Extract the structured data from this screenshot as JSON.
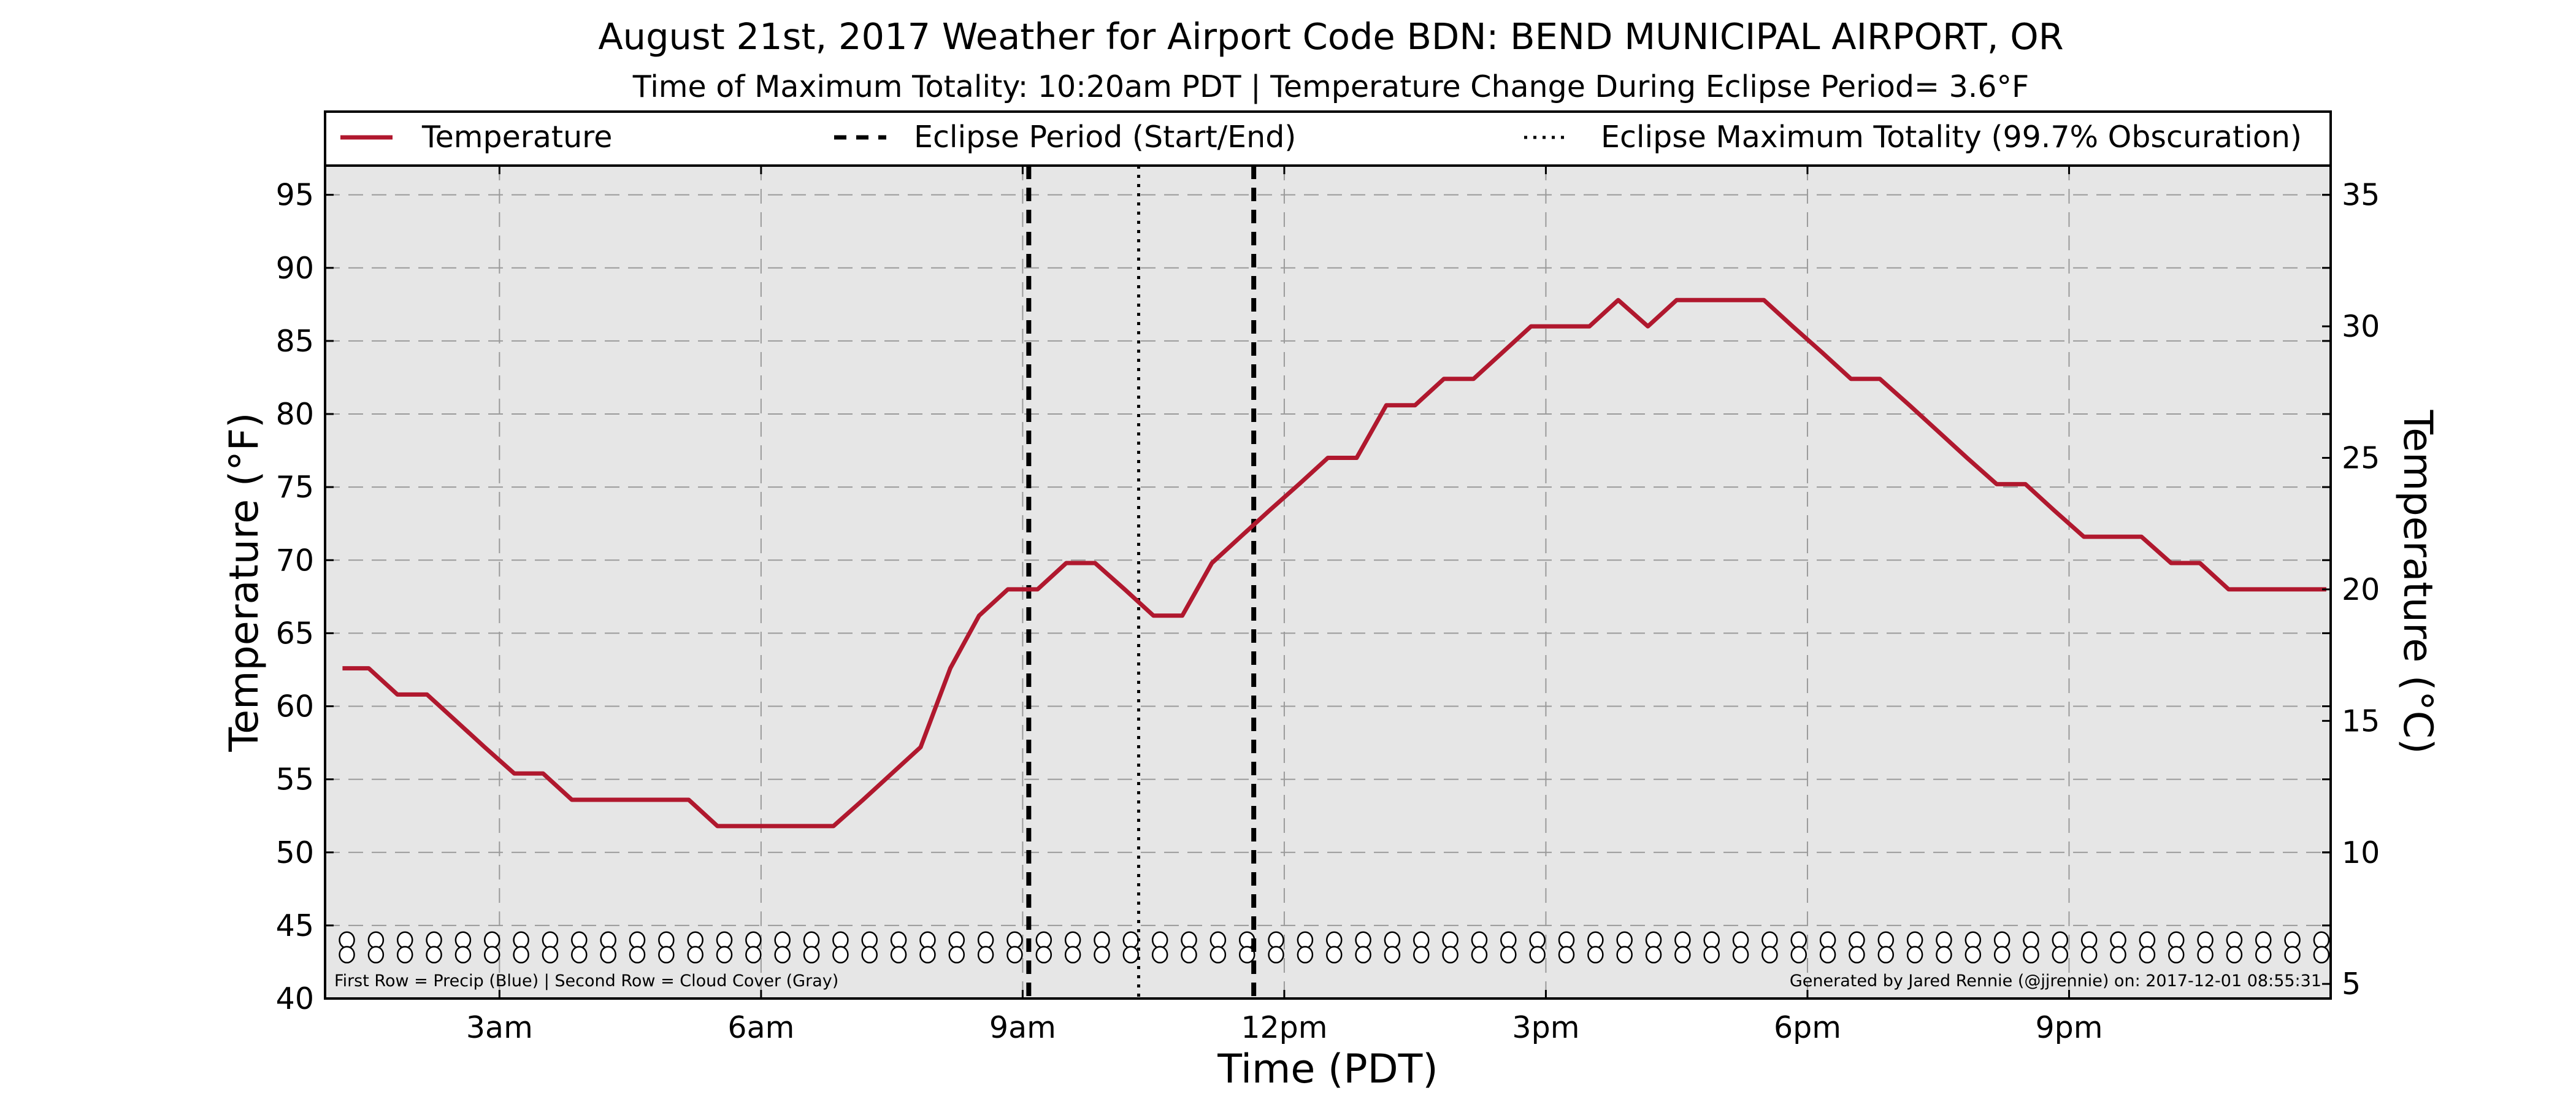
{
  "colors": {
    "temperature": "#b0182e",
    "background": "#e6e6e6",
    "grid": "#9a9a9a",
    "frame": "#000000"
  },
  "chart_data": {
    "type": "line",
    "title": "August 21st, 2017 Weather for Airport Code BDN: BEND MUNICIPAL AIRPORT, OR",
    "subtitle": "Time of Maximum Totality: 10:20am PDT | Temperature Change During Eclipse Period= 3.6°F",
    "xlabel": "Time (PDT)",
    "ylabel": "Temperature (°F)",
    "ylabel_right": "Temperature (°C)",
    "x_unit": "hours after midnight (PDT)",
    "xlim": [
      1.0,
      24.0
    ],
    "ylim": [
      40,
      97
    ],
    "ylim_right_celsius": [
      4.44,
      36.11
    ],
    "x_ticks": [
      {
        "value": 3,
        "label": "3am"
      },
      {
        "value": 6,
        "label": "6am"
      },
      {
        "value": 9,
        "label": "9am"
      },
      {
        "value": 12,
        "label": "12pm"
      },
      {
        "value": 15,
        "label": "3pm"
      },
      {
        "value": 18,
        "label": "6pm"
      },
      {
        "value": 21,
        "label": "9pm"
      }
    ],
    "y_ticks": [
      "40",
      "45",
      "50",
      "55",
      "60",
      "65",
      "70",
      "75",
      "80",
      "85",
      "90",
      "95"
    ],
    "y_ticks_right": [
      "5",
      "10",
      "15",
      "20",
      "25",
      "30",
      "35"
    ],
    "grid": true,
    "legend": {
      "placement": "top",
      "entries": [
        {
          "label": "Temperature",
          "style": "solid"
        },
        {
          "label": "Eclipse Period (Start/End)",
          "style": "dashed"
        },
        {
          "label": "Eclipse Maximum Totality (99.7% Obscuration)",
          "style": "dotted"
        }
      ]
    },
    "series": [
      {
        "name": "Temperature",
        "x": [
          1.2,
          1.5,
          1.83,
          2.17,
          2.5,
          2.83,
          3.17,
          3.5,
          3.83,
          4.17,
          4.5,
          4.83,
          5.17,
          5.5,
          5.83,
          6.17,
          6.5,
          6.83,
          7.17,
          7.5,
          7.83,
          8.17,
          8.5,
          8.83,
          9.17,
          9.5,
          9.83,
          10.17,
          10.5,
          10.83,
          11.17,
          11.5,
          11.83,
          12.17,
          12.5,
          12.83,
          13.17,
          13.5,
          13.83,
          14.17,
          14.5,
          14.83,
          15.17,
          15.5,
          15.83,
          16.17,
          16.5,
          16.83,
          17.17,
          17.5,
          17.83,
          18.17,
          18.5,
          18.83,
          19.17,
          19.5,
          19.83,
          20.17,
          20.5,
          20.83,
          21.17,
          21.5,
          21.83,
          22.17,
          22.5,
          22.83,
          23.17,
          23.5,
          23.83,
          23.95
        ],
        "values": [
          62.6,
          62.6,
          60.8,
          60.8,
          59.0,
          57.2,
          55.4,
          55.4,
          53.6,
          53.6,
          53.6,
          53.6,
          53.6,
          51.8,
          51.8,
          51.8,
          51.8,
          51.8,
          53.6,
          55.4,
          57.2,
          62.6,
          66.2,
          68.0,
          68.0,
          69.8,
          69.8,
          68.0,
          66.2,
          66.2,
          69.8,
          71.6,
          73.4,
          75.2,
          77.0,
          77.0,
          80.6,
          80.6,
          82.4,
          82.4,
          84.2,
          86.0,
          86.0,
          86.0,
          87.8,
          86.0,
          87.8,
          87.8,
          87.8,
          87.8,
          86.0,
          84.2,
          82.4,
          82.4,
          80.6,
          78.8,
          77.0,
          75.2,
          75.2,
          73.4,
          71.6,
          71.6,
          71.6,
          69.8,
          69.8,
          68.0,
          68.0,
          68.0,
          68.0,
          68.0
        ]
      }
    ],
    "vertical_lines": [
      {
        "name": "Eclipse Period (Start/End)",
        "x": 9.07,
        "style": "dashed"
      },
      {
        "name": "Eclipse Maximum Totality (99.7% Obscuration)",
        "x": 10.33,
        "style": "dotted"
      },
      {
        "name": "Eclipse Period (Start/End)",
        "x": 11.65,
        "style": "dashed"
      }
    ],
    "marker_rows": {
      "rows": [
        {
          "description": "Precip (Blue)",
          "y": 44,
          "symbol": "circle"
        },
        {
          "description": "Cloud Cover (Gray)",
          "y": 43,
          "symbol": "circle"
        }
      ],
      "x_start": 1.25,
      "x_step": 0.333
    },
    "annotations": {
      "bottom_left": "First Row = Precip (Blue) | Second Row = Cloud Cover (Gray)",
      "bottom_right": "Generated by Jared Rennie (@jjrennie) on: 2017-12-01 08:55:31"
    }
  }
}
